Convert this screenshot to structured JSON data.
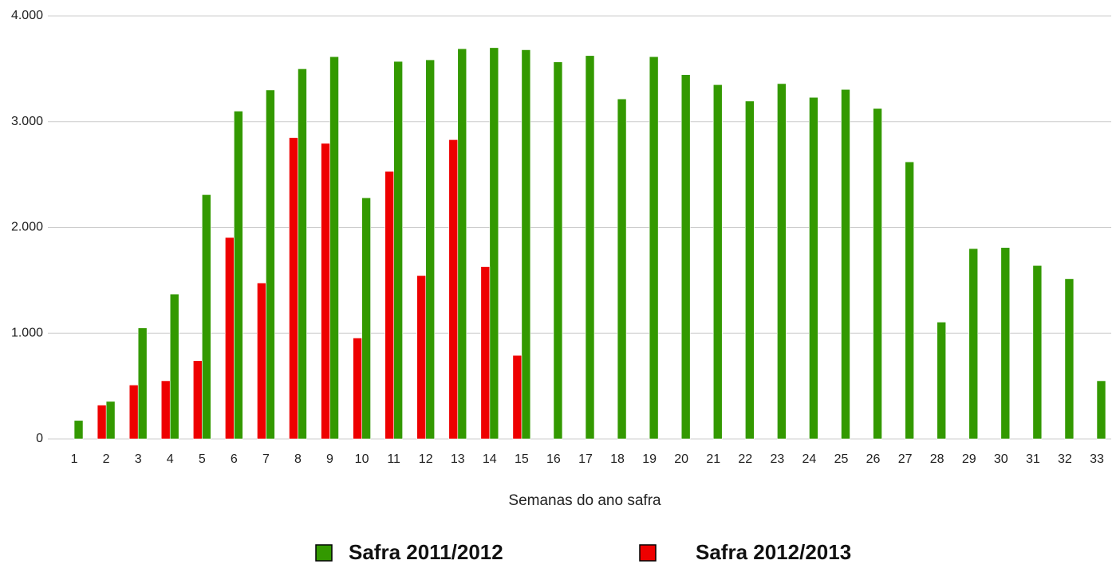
{
  "chart_data": {
    "type": "bar",
    "x_label": "Semanas do ano safra",
    "categories": [
      "1",
      "2",
      "3",
      "4",
      "5",
      "6",
      "7",
      "8",
      "9",
      "10",
      "11",
      "12",
      "13",
      "14",
      "15",
      "16",
      "17",
      "18",
      "19",
      "20",
      "21",
      "22",
      "23",
      "24",
      "25",
      "26",
      "27",
      "28",
      "29",
      "30",
      "31",
      "32",
      "33"
    ],
    "series": [
      {
        "name": "Safra 2011/2012",
        "color": "#339900",
        "values": [
          175,
          355,
          1050,
          1370,
          2310,
          3100,
          3300,
          3500,
          3615,
          2280,
          3570,
          3585,
          3690,
          3700,
          3680,
          3565,
          3625,
          3215,
          3615,
          3445,
          3350,
          3195,
          3360,
          3230,
          3305,
          3125,
          2620,
          1105,
          1800,
          1810,
          1640,
          1515,
          550
        ]
      },
      {
        "name": "Safra 2012/2013",
        "color": "#ee0000",
        "values": [
          null,
          320,
          510,
          550,
          740,
          1905,
          1475,
          2850,
          2795,
          955,
          2530,
          1545,
          2830,
          1630,
          790,
          null,
          null,
          null,
          null,
          null,
          null,
          null,
          null,
          null,
          null,
          null,
          null,
          null,
          null,
          null,
          null,
          null,
          null
        ]
      }
    ],
    "ylim": [
      0,
      4000
    ],
    "yticks": [
      0,
      {
        "value": 1000,
        "label": "1.000"
      },
      {
        "value": 2000,
        "label": "2.000"
      },
      {
        "value": 3000,
        "label": "3.000"
      },
      {
        "value": 4000,
        "label": "4.000"
      }
    ],
    "grid": true,
    "legend": "bottom"
  }
}
